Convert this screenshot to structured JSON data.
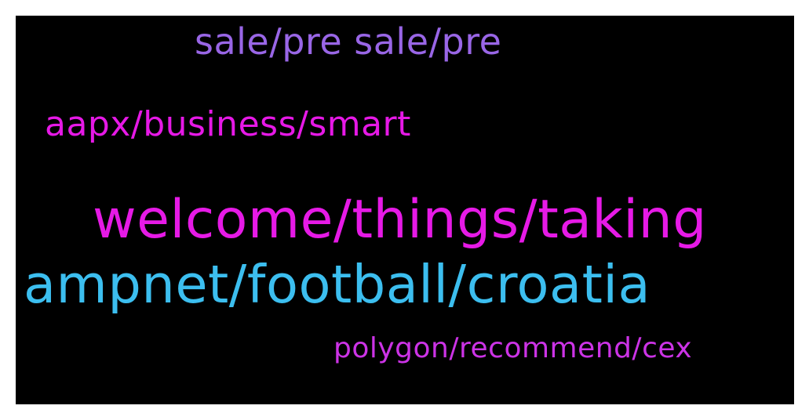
{
  "wordcloud": {
    "background_color": "#000000",
    "words": [
      {
        "text": "sale/pre sale/pre",
        "color": "#9966E6"
      },
      {
        "text": "aapx/business/smart",
        "color": "#E619E6"
      },
      {
        "text": "welcome/things/taking",
        "color": "#E61AE6"
      },
      {
        "text": "ampnet/football/croatia",
        "color": "#3CBEEF"
      },
      {
        "text": "polygon/recommend/cex",
        "color": "#CC33E6"
      }
    ]
  }
}
